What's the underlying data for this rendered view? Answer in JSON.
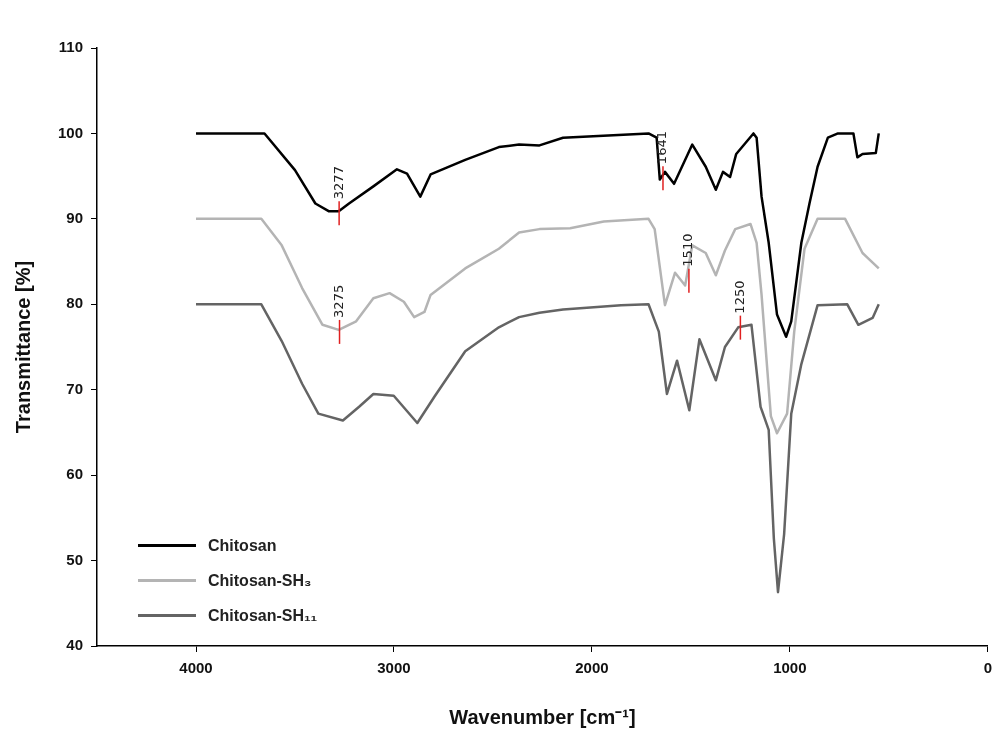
{
  "chart_data": {
    "type": "line",
    "xlabel": "Wavenumber [cm⁻¹]",
    "ylabel": "Transmittance [%]",
    "xlim": [
      4500,
      0
    ],
    "xticks": [
      4000,
      3000,
      2000,
      1000,
      0
    ],
    "ylim": [
      40,
      110
    ],
    "yticks": [
      40,
      50,
      60,
      70,
      80,
      90,
      100,
      110
    ],
    "grid": false,
    "legend": "bottom left",
    "marker": "none",
    "line_style": "solid",
    "series": [
      {
        "name": "Chitosan",
        "color": "#000000",
        "x": [
          4000,
          3654,
          3500,
          3397,
          3330,
          3279,
          3227,
          3104,
          2985,
          2934,
          2867,
          2815,
          2640,
          2470,
          2368,
          2265,
          2146,
          1714,
          1673,
          1657,
          1631,
          1585,
          1493,
          1425,
          1374,
          1338,
          1302,
          1271,
          1184,
          1168,
          1143,
          1107,
          1065,
          1019,
          993,
          942,
          901,
          860,
          808,
          757,
          679,
          659,
          633,
          566,
          551
        ],
        "values": [
          100,
          100,
          95.7,
          91.8,
          90.9,
          90.9,
          91.8,
          93.8,
          95.8,
          95.3,
          92.6,
          95.2,
          96.9,
          98.4,
          98.7,
          98.6,
          99.5,
          100,
          99.5,
          94.6,
          95.5,
          94.1,
          98.7,
          96.1,
          93.4,
          95.5,
          94.9,
          97.6,
          100,
          99.5,
          92.6,
          87.2,
          78.8,
          76.2,
          78,
          87.2,
          91.8,
          96.1,
          99.5,
          100,
          100,
          97.2,
          97.6,
          97.7,
          100
        ]
      },
      {
        "name": "Chitosan-SH₃",
        "color": "#b4b4b4",
        "x": [
          4000,
          3670,
          3567,
          3464,
          3361,
          3279,
          3191,
          3104,
          3022,
          2950,
          2898,
          2846,
          2815,
          2640,
          2470,
          2368,
          2265,
          2110,
          1940,
          1714,
          1683,
          1631,
          1580,
          1529,
          1493,
          1425,
          1374,
          1328,
          1276,
          1199,
          1168,
          1143,
          1096,
          1065,
          1014,
          978,
          926,
          860,
          721,
          633,
          551
        ],
        "values": [
          90,
          90,
          86.9,
          81.9,
          77.6,
          77,
          78,
          80.7,
          81.3,
          80.3,
          78.5,
          79.1,
          81.1,
          84.2,
          86.5,
          88.4,
          88.8,
          88.9,
          89.7,
          90,
          88.8,
          79.9,
          83.7,
          82.2,
          86.9,
          86,
          83.4,
          86.3,
          88.8,
          89.4,
          87.2,
          81.1,
          66.9,
          64.9,
          67.2,
          76.8,
          86.5,
          90,
          90,
          86,
          84.2
        ]
      },
      {
        "name": "Chitosan-SH₁₁",
        "color": "#646464",
        "x": [
          4000,
          3670,
          3567,
          3464,
          3382,
          3258,
          3176,
          3104,
          3001,
          2882,
          2795,
          2640,
          2470,
          2368,
          2265,
          2146,
          1853,
          1714,
          1662,
          1621,
          1570,
          1508,
          1457,
          1374,
          1328,
          1261,
          1194,
          1148,
          1107,
          1081,
          1060,
          1029,
          993,
          942,
          860,
          710,
          654,
          582,
          551
        ],
        "values": [
          80,
          80,
          75.7,
          70.7,
          67.2,
          66.4,
          68,
          69.5,
          69.3,
          66.1,
          69.2,
          74.5,
          77.3,
          78.5,
          79,
          79.4,
          79.9,
          80,
          76.8,
          69.5,
          73.4,
          67.6,
          75.9,
          71.1,
          75,
          77.3,
          77.6,
          68,
          65.3,
          52.6,
          46.3,
          53.1,
          67.2,
          73,
          79.9,
          80,
          77.6,
          78.4,
          80
        ]
      }
    ],
    "annotations": [
      {
        "text": "3277",
        "x": 3277,
        "y": 90.9
      },
      {
        "text": "3275",
        "x": 3275,
        "y": 77
      },
      {
        "text": "1641",
        "x": 1641,
        "y": 95
      },
      {
        "text": "1510",
        "x": 1510,
        "y": 83
      },
      {
        "text": "1250",
        "x": 1250,
        "y": 77.5
      }
    ]
  }
}
